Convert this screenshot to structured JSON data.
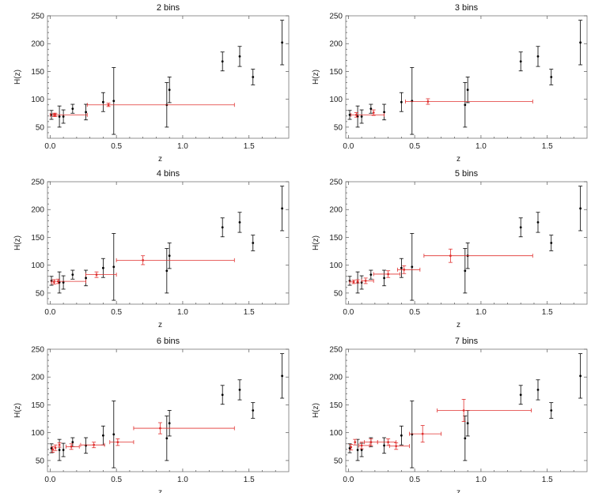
{
  "chart_data": {
    "type": "scatter",
    "panel_count": 6,
    "xlabel": "z",
    "ylabel": "H(z)",
    "xlim": [
      -0.02,
      1.8
    ],
    "ylim": [
      30,
      250
    ],
    "xticks": [
      "0.0",
      "0.5",
      "1.0",
      "1.5"
    ],
    "yticks": [
      "50",
      "100",
      "150",
      "200",
      "250"
    ],
    "colors": {
      "data": "#000000",
      "binned": "#e0302f",
      "frame": "#777777"
    },
    "observations": [
      {
        "z": 0.01,
        "H": 72,
        "err": 8
      },
      {
        "z": 0.07,
        "H": 69,
        "err": 19
      },
      {
        "z": 0.1,
        "H": 69,
        "err": 12
      },
      {
        "z": 0.17,
        "H": 83,
        "err": 8
      },
      {
        "z": 0.27,
        "H": 77,
        "err": 14
      },
      {
        "z": 0.4,
        "H": 95,
        "err": 17
      },
      {
        "z": 0.48,
        "H": 97,
        "err": 60
      },
      {
        "z": 0.88,
        "H": 90,
        "err": 40
      },
      {
        "z": 0.9,
        "H": 117,
        "err": 23
      },
      {
        "z": 1.3,
        "H": 168,
        "err": 17
      },
      {
        "z": 1.43,
        "H": 177,
        "err": 18
      },
      {
        "z": 1.53,
        "H": 140,
        "err": 14
      },
      {
        "z": 1.75,
        "H": 202,
        "err": 40
      }
    ],
    "panels": [
      {
        "title": "2 bins",
        "bins": [
          {
            "z": 0.03,
            "H": 72,
            "zerr": [
              0.0,
              0.01
            ],
            "Herr": 3
          },
          {
            "z": 0.04,
            "H": 72,
            "zerr": [
              0.04,
              0.24
            ],
            "Herr": 3
          },
          {
            "z": 0.44,
            "H": 90,
            "zerr": [
              0.16,
              0.95
            ],
            "Herr": 3
          }
        ]
      },
      {
        "title": "3 bins",
        "bins": [
          {
            "z": 0.06,
            "H": 72,
            "zerr": [
              0.04,
              0.21
            ],
            "Herr": 4
          },
          {
            "z": 0.19,
            "H": 76,
            "zerr": [
              0.0,
              0.0
            ],
            "Herr": 5
          },
          {
            "z": 0.6,
            "H": 96,
            "zerr": [
              0.17,
              0.79
            ],
            "Herr": 5
          }
        ]
      },
      {
        "title": "4 bins",
        "bins": [
          {
            "z": 0.03,
            "H": 70,
            "zerr": [
              0.02,
              0.0
            ],
            "Herr": 4
          },
          {
            "z": 0.06,
            "H": 71,
            "zerr": [
              0.03,
              0.21
            ],
            "Herr": 4
          },
          {
            "z": 0.35,
            "H": 83,
            "zerr": [
              0.08,
              0.15
            ],
            "Herr": 5
          },
          {
            "z": 0.7,
            "H": 109,
            "zerr": [
              0.2,
              0.69
            ],
            "Herr": 8
          }
        ]
      },
      {
        "title": "5 bins",
        "bins": [
          {
            "z": 0.04,
            "H": 70,
            "zerr": [
              0.03,
              0.0
            ],
            "Herr": 3
          },
          {
            "z": 0.07,
            "H": 71,
            "zerr": [
              0.0,
              0.0
            ],
            "Herr": 3
          },
          {
            "z": 0.13,
            "H": 72,
            "zerr": [
              0.03,
              0.06
            ],
            "Herr": 5
          },
          {
            "z": 0.3,
            "H": 84,
            "zerr": [
              0.11,
              0.09
            ],
            "Herr": 6
          },
          {
            "z": 0.42,
            "H": 92,
            "zerr": [
              0.05,
              0.12
            ],
            "Herr": 7
          },
          {
            "z": 0.77,
            "H": 117,
            "zerr": [
              0.2,
              0.62
            ],
            "Herr": 12
          }
        ]
      },
      {
        "title": "6 bins",
        "bins": [
          {
            "z": 0.02,
            "H": 70,
            "zerr": [
              0.0,
              0.0
            ],
            "Herr": 5
          },
          {
            "z": 0.04,
            "H": 73,
            "zerr": [
              0.0,
              0.0
            ],
            "Herr": 5
          },
          {
            "z": 0.07,
            "H": 78,
            "zerr": [
              0.0,
              0.0
            ],
            "Herr": 4
          },
          {
            "z": 0.16,
            "H": 75,
            "zerr": [
              0.04,
              0.06
            ],
            "Herr": 5
          },
          {
            "z": 0.33,
            "H": 78,
            "zerr": [
              0.1,
              0.08
            ],
            "Herr": 5
          },
          {
            "z": 0.51,
            "H": 83,
            "zerr": [
              0.06,
              0.12
            ],
            "Herr": 6
          },
          {
            "z": 0.83,
            "H": 108,
            "zerr": [
              0.2,
              0.56
            ],
            "Herr": 10
          }
        ]
      },
      {
        "title": "7 bins",
        "bins": [
          {
            "z": 0.02,
            "H": 74,
            "zerr": [
              0.0,
              0.0
            ],
            "Herr": 5
          },
          {
            "z": 0.05,
            "H": 83,
            "zerr": [
              0.0,
              0.0
            ],
            "Herr": 5
          },
          {
            "z": 0.1,
            "H": 77,
            "zerr": [
              0.02,
              0.06
            ],
            "Herr": 6
          },
          {
            "z": 0.17,
            "H": 83,
            "zerr": [
              0.05,
              0.05
            ],
            "Herr": 6
          },
          {
            "z": 0.3,
            "H": 83,
            "zerr": [
              0.08,
              0.06
            ],
            "Herr": 6
          },
          {
            "z": 0.36,
            "H": 76,
            "zerr": [
              0.05,
              0.1
            ],
            "Herr": 6
          },
          {
            "z": 0.56,
            "H": 98,
            "zerr": [
              0.1,
              0.14
            ],
            "Herr": 15
          },
          {
            "z": 0.87,
            "H": 140,
            "zerr": [
              0.2,
              0.51
            ],
            "Herr": 20
          }
        ]
      }
    ]
  }
}
